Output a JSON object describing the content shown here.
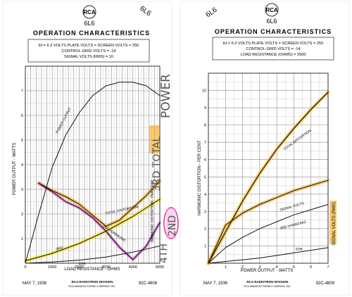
{
  "charts": [
    {
      "tube_logo": "RCA",
      "tube_type": "6L6",
      "title": "OPERATION CHARACTERISTICS",
      "conditions": [
        "Ef = 6.3 VOLTS   PLATE VOLTS = SCREEN VOLTS = 250",
        "CONTROL-GRID VOLTS = -14",
        "SIGNAL VOLTS (RMS) = 10"
      ],
      "footer_date": "MAY 7, 1936",
      "footer_division": "RCA RADIOTRON DIVISION",
      "footer_company": "RCA MANUFACTURING COMPANY, INC.",
      "footer_code": "92C-4808",
      "corner_note": "6L6",
      "handwritten": {
        "power": "POWER",
        "total": "3RD TOTAL",
        "second": "2ND",
        "fourth": "4TH"
      }
    },
    {
      "tube_logo": "RCA",
      "tube_type": "6L6",
      "title": "OPERATION CHARACTERISTICS",
      "conditions": [
        "Ef = 6.3 VOLTS   PLATE VOLTS = SCREEN VOLTS = 250",
        "CONTROL-GRID VOLTS = -14",
        "LOAD RESISTANCE (OHMS) = 2500"
      ],
      "footer_date": "MAY 7, 1936",
      "footer_division": "RCA RADIOTRON DIVISION",
      "footer_company": "RCA MANUFACTURING COMPANY, INC.",
      "footer_code": "92C-4809",
      "corner_note": "6L6"
    }
  ],
  "chart_data": [
    {
      "type": "line",
      "xlabel": "LOAD RESISTANCE - OHMS",
      "ylabel": "POWER OUTPUT - WATTS",
      "y2label": "HARMONIC DISTORTION - PER CENT",
      "xlim": [
        0,
        5000
      ],
      "ylim": [
        0,
        8
      ],
      "y2lim": [
        0,
        16
      ],
      "x_ticks": [
        0,
        1000,
        2000,
        3000,
        4000,
        5000
      ],
      "y_ticks": [
        1,
        2,
        3,
        4,
        5,
        6,
        7
      ],
      "grid": true,
      "series": [
        {
          "name": "POWER OUTPUT",
          "axis": "left",
          "color": "#111111",
          "x": [
            0,
            500,
            1000,
            1500,
            2000,
            2500,
            3000,
            3500,
            4000,
            4500,
            5000
          ],
          "y": [
            0,
            2.0,
            3.9,
            5.2,
            6.1,
            6.8,
            7.2,
            7.35,
            7.35,
            7.2,
            6.8
          ]
        },
        {
          "name": "TOTAL DISTORTION",
          "axis": "right",
          "color": "#111111",
          "x": [
            500,
            1000,
            1500,
            2000,
            2500,
            3000,
            3500,
            4000,
            4500,
            5000
          ],
          "y": [
            6.5,
            5.9,
            5.4,
            4.8,
            3.9,
            3.0,
            3.5,
            4.5,
            5.5,
            6.7
          ]
        },
        {
          "name": "2ND HARMONIC",
          "axis": "right",
          "color": "#111111",
          "x": [
            500,
            1000,
            1500,
            2000,
            2500,
            3000,
            3500,
            4000,
            4500,
            5000
          ],
          "y": [
            6.5,
            5.8,
            5.0,
            4.5,
            3.7,
            2.6,
            1.3,
            0.3,
            1.4,
            3.3
          ]
        },
        {
          "name": "3RD HARMONIC",
          "axis": "right",
          "color": "#111111",
          "x": [
            0,
            1000,
            2000,
            3000,
            4000,
            5000
          ],
          "y": [
            0.2,
            0.8,
            1.6,
            2.6,
            3.8,
            5.2
          ]
        },
        {
          "name": "4TH HARMONIC",
          "axis": "right",
          "color": "#111111",
          "x": [
            0,
            1000,
            2000,
            3000,
            4000,
            5000
          ],
          "y": [
            0,
            0.1,
            0.25,
            0.5,
            0.9,
            1.4
          ]
        }
      ],
      "labels": [
        "POWER OUTPUT",
        "TOTAL DISTORTION",
        "2ND HARMONIC",
        "3RD",
        "4TH",
        "HARMONIC DISTORTION - PER CENT"
      ],
      "highlights": [
        "#f5e10a",
        "#c43ac4",
        "#f4a000"
      ]
    },
    {
      "type": "line",
      "xlabel": "POWER OUTPUT - WATTS",
      "ylabel": "HARMONIC DISTORTION - PER CENT",
      "y2label": "SIGNAL VOLTS (RMS)",
      "xlim": [
        0,
        7
      ],
      "ylim": [
        0,
        11
      ],
      "y2lim": [
        0,
        11
      ],
      "x_ticks": [
        1,
        2,
        3,
        4,
        5,
        6,
        7
      ],
      "y_ticks": [
        1,
        2,
        3,
        4,
        5,
        6,
        7,
        8,
        9,
        10
      ],
      "grid": true,
      "series": [
        {
          "name": "TOTAL DISTORTION",
          "axis": "left",
          "color": "#111111",
          "x": [
            0,
            1,
            2,
            3,
            4,
            5,
            6,
            7
          ],
          "y": [
            0,
            1.8,
            3.6,
            5.2,
            6.6,
            7.8,
            8.9,
            9.9
          ]
        },
        {
          "name": "SIGNAL VOLTS",
          "axis": "right",
          "color": "#111111",
          "x": [
            0,
            1,
            2,
            3,
            4,
            5,
            6,
            7
          ],
          "y": [
            0,
            2.2,
            2.9,
            3.4,
            3.8,
            4.2,
            4.5,
            4.8
          ]
        },
        {
          "name": "3RD HARMONIC",
          "axis": "left",
          "color": "#111111",
          "x": [
            0,
            1,
            2,
            3,
            4,
            5,
            6,
            7
          ],
          "y": [
            0,
            0.9,
            1.5,
            2.0,
            2.4,
            2.8,
            3.1,
            3.4
          ]
        },
        {
          "name": "5TH HARMONIC",
          "axis": "left",
          "color": "#111111",
          "x": [
            0,
            1,
            2,
            3,
            4,
            5,
            6,
            7
          ],
          "y": [
            0,
            0.1,
            0.2,
            0.3,
            0.45,
            0.6,
            0.75,
            0.9
          ]
        }
      ],
      "labels": [
        "TOTAL DISTORTION",
        "SIGNAL VOLTS",
        "3RD HARMONIC",
        "5TH",
        "SIGNAL VOLTS (RMS)"
      ],
      "highlights": [
        "#f5e10a",
        "#c43ac4",
        "#f4a000"
      ]
    }
  ]
}
